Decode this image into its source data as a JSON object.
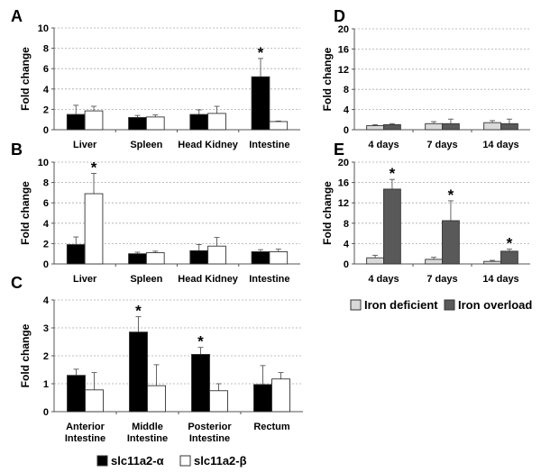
{
  "chart_data": [
    {
      "id": "A",
      "type": "bar",
      "panel_label": "A",
      "ylabel": "Fold change",
      "ylim": [
        0,
        10
      ],
      "yticks": [
        0,
        2,
        4,
        6,
        8,
        10
      ],
      "grid": true,
      "categories": [
        "Liver",
        "Spleen",
        "Head Kidney",
        "Intestine"
      ],
      "series": [
        {
          "name": "slc11a2-α",
          "color": "#000000",
          "values": [
            1.5,
            1.2,
            1.5,
            5.2
          ],
          "err_top": [
            2.4,
            1.4,
            1.95,
            7.0
          ],
          "sig": [
            false,
            false,
            false,
            true
          ]
        },
        {
          "name": "slc11a2-β",
          "color": "#ffffff",
          "values": [
            1.85,
            1.25,
            1.6,
            0.8
          ],
          "err_top": [
            2.3,
            1.45,
            2.3,
            0.85
          ],
          "sig": [
            false,
            false,
            false,
            false
          ]
        }
      ]
    },
    {
      "id": "B",
      "type": "bar",
      "panel_label": "B",
      "ylabel": "Fold change",
      "ylim": [
        0,
        10
      ],
      "yticks": [
        0,
        2,
        4,
        6,
        8,
        10
      ],
      "grid": true,
      "categories": [
        "Liver",
        "Spleen",
        "Head Kidney",
        "Intestine"
      ],
      "series": [
        {
          "name": "slc11a2-α",
          "color": "#000000",
          "values": [
            1.9,
            1.0,
            1.3,
            1.2
          ],
          "err_top": [
            2.65,
            1.15,
            1.9,
            1.4
          ],
          "sig": [
            false,
            false,
            false,
            false
          ]
        },
        {
          "name": "slc11a2-β",
          "color": "#ffffff",
          "values": [
            6.9,
            1.1,
            1.75,
            1.2
          ],
          "err_top": [
            8.9,
            1.25,
            2.6,
            1.45
          ],
          "sig": [
            true,
            false,
            false,
            false
          ]
        }
      ]
    },
    {
      "id": "C",
      "type": "bar",
      "panel_label": "C",
      "ylabel": "Fold change",
      "ylim": [
        0,
        4
      ],
      "yticks": [
        0,
        1,
        2,
        3,
        4
      ],
      "grid": true,
      "categories": [
        [
          "Anterior",
          "Intestine"
        ],
        [
          "Middle",
          "Intestine"
        ],
        [
          "Posterior",
          "Intestine"
        ],
        [
          "Rectum"
        ]
      ],
      "series": [
        {
          "name": "slc11a2-α",
          "color": "#000000",
          "values": [
            1.3,
            2.85,
            2.05,
            0.97
          ],
          "err_top": [
            1.52,
            3.4,
            2.3,
            1.65
          ],
          "sig": [
            false,
            true,
            true,
            false
          ]
        },
        {
          "name": "slc11a2-β",
          "color": "#ffffff",
          "values": [
            0.78,
            0.93,
            0.75,
            1.17
          ],
          "err_top": [
            1.4,
            1.68,
            1.0,
            1.4
          ],
          "sig": [
            false,
            false,
            false,
            false
          ]
        }
      ]
    },
    {
      "id": "D",
      "type": "bar",
      "panel_label": "D",
      "ylabel": "Fold change",
      "ylim": [
        0,
        20
      ],
      "yticks": [
        0,
        4,
        8,
        12,
        16,
        20
      ],
      "grid": true,
      "categories": [
        "4 days",
        "7 days",
        "14 days"
      ],
      "series": [
        {
          "name": "Iron deficient",
          "color": "#d9d9d9",
          "values": [
            0.8,
            1.2,
            1.4
          ],
          "err_top": [
            1.0,
            1.6,
            1.8
          ],
          "sig": [
            false,
            false,
            false
          ]
        },
        {
          "name": "Iron overload",
          "color": "#595959",
          "values": [
            1.0,
            1.2,
            1.2
          ],
          "err_top": [
            1.2,
            2.1,
            2.1
          ],
          "sig": [
            false,
            false,
            false
          ]
        }
      ]
    },
    {
      "id": "E",
      "type": "bar",
      "panel_label": "E",
      "ylabel": "Fold change",
      "ylim": [
        0,
        20
      ],
      "yticks": [
        0,
        4,
        8,
        12,
        16,
        20
      ],
      "grid": true,
      "categories": [
        "4 days",
        "7 days",
        "14 days"
      ],
      "series": [
        {
          "name": "Iron deficient",
          "color": "#d9d9d9",
          "values": [
            1.2,
            0.9,
            0.5
          ],
          "err_top": [
            1.7,
            1.3,
            0.7
          ],
          "sig": [
            false,
            false,
            false
          ]
        },
        {
          "name": "Iron overload",
          "color": "#595959",
          "values": [
            14.7,
            8.5,
            2.5
          ],
          "err_top": [
            16.6,
            12.4,
            2.9
          ],
          "sig": [
            true,
            true,
            true
          ]
        }
      ]
    }
  ],
  "legends": {
    "left": [
      {
        "label": "slc11a2-α",
        "color": "#000000"
      },
      {
        "label": "slc11a2-β",
        "color": "#ffffff"
      }
    ],
    "right": [
      {
        "label": "Iron deficient",
        "color": "#d9d9d9"
      },
      {
        "label": "Iron overload",
        "color": "#595959"
      }
    ]
  },
  "significance_marker": "*"
}
